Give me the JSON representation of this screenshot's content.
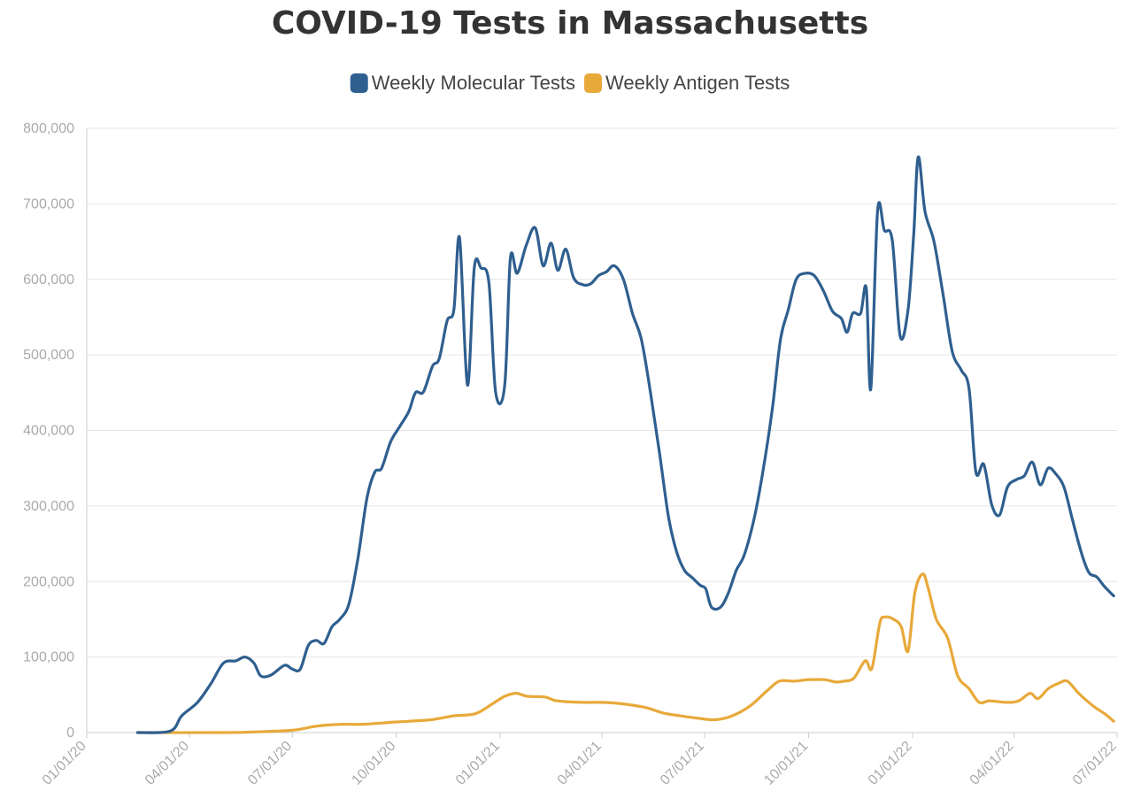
{
  "chart_data": {
    "type": "line",
    "title": "COVID-19 Tests in Massachusetts",
    "xlabel": "",
    "ylabel": "",
    "x_axis": {
      "type": "date",
      "range": [
        "2020-01-01",
        "2022-07-01"
      ],
      "ticks": [
        {
          "date": "2020-01-01",
          "label": "01/01/20"
        },
        {
          "date": "2020-04-01",
          "label": "04/01/20"
        },
        {
          "date": "2020-07-01",
          "label": "07/01/20"
        },
        {
          "date": "2020-10-01",
          "label": "10/01/20"
        },
        {
          "date": "2021-01-01",
          "label": "01/01/21"
        },
        {
          "date": "2021-04-01",
          "label": "04/01/21"
        },
        {
          "date": "2021-07-01",
          "label": "07/01/21"
        },
        {
          "date": "2021-10-01",
          "label": "10/01/21"
        },
        {
          "date": "2022-01-01",
          "label": "01/01/22"
        },
        {
          "date": "2022-04-01",
          "label": "04/01/22"
        },
        {
          "date": "2022-07-01",
          "label": "07/01/22"
        }
      ]
    },
    "y_axis": {
      "range": [
        0,
        800000
      ],
      "ticks": [
        {
          "value": 0,
          "label": "0"
        },
        {
          "value": 100000,
          "label": "100,000"
        },
        {
          "value": 200000,
          "label": "200,000"
        },
        {
          "value": 300000,
          "label": "300,000"
        },
        {
          "value": 400000,
          "label": "400,000"
        },
        {
          "value": 500000,
          "label": "500,000"
        },
        {
          "value": 600000,
          "label": "600,000"
        },
        {
          "value": 700000,
          "label": "700,000"
        },
        {
          "value": 800000,
          "label": "800,000"
        }
      ]
    },
    "grid": "horizontal",
    "legend": "top-center",
    "series": [
      {
        "name": "Weekly Molecular Tests",
        "color": "#2f5f8f",
        "points": [
          [
            "2020-02-15",
            0
          ],
          [
            "2020-03-15",
            2000
          ],
          [
            "2020-03-25",
            22000
          ],
          [
            "2020-04-08",
            40000
          ],
          [
            "2020-04-20",
            65000
          ],
          [
            "2020-05-01",
            92000
          ],
          [
            "2020-05-12",
            95000
          ],
          [
            "2020-05-20",
            100000
          ],
          [
            "2020-05-28",
            92000
          ],
          [
            "2020-06-03",
            75000
          ],
          [
            "2020-06-12",
            76000
          ],
          [
            "2020-06-24",
            89000
          ],
          [
            "2020-07-01",
            84000
          ],
          [
            "2020-07-08",
            84000
          ],
          [
            "2020-07-15",
            115000
          ],
          [
            "2020-07-22",
            122000
          ],
          [
            "2020-07-29",
            118000
          ],
          [
            "2020-08-05",
            140000
          ],
          [
            "2020-08-12",
            150000
          ],
          [
            "2020-08-20",
            170000
          ],
          [
            "2020-08-28",
            230000
          ],
          [
            "2020-09-05",
            310000
          ],
          [
            "2020-09-12",
            345000
          ],
          [
            "2020-09-18",
            350000
          ],
          [
            "2020-09-26",
            385000
          ],
          [
            "2020-10-04",
            405000
          ],
          [
            "2020-10-12",
            425000
          ],
          [
            "2020-10-18",
            450000
          ],
          [
            "2020-10-25",
            451000
          ],
          [
            "2020-11-02",
            485000
          ],
          [
            "2020-11-08",
            495000
          ],
          [
            "2020-11-15",
            545000
          ],
          [
            "2020-11-21",
            560000
          ],
          [
            "2020-11-26",
            655000
          ],
          [
            "2020-12-03",
            460000
          ],
          [
            "2020-12-09",
            615000
          ],
          [
            "2020-12-15",
            615000
          ],
          [
            "2020-12-22",
            595000
          ],
          [
            "2020-12-28",
            450000
          ],
          [
            "2021-01-05",
            460000
          ],
          [
            "2021-01-10",
            628000
          ],
          [
            "2021-01-16",
            608000
          ],
          [
            "2021-01-24",
            645000
          ],
          [
            "2021-02-01",
            668000
          ],
          [
            "2021-02-08",
            618000
          ],
          [
            "2021-02-15",
            648000
          ],
          [
            "2021-02-21",
            612000
          ],
          [
            "2021-02-28",
            640000
          ],
          [
            "2021-03-07",
            602000
          ],
          [
            "2021-03-15",
            593000
          ],
          [
            "2021-03-22",
            594000
          ],
          [
            "2021-03-29",
            605000
          ],
          [
            "2021-04-05",
            610000
          ],
          [
            "2021-04-12",
            618000
          ],
          [
            "2021-04-20",
            600000
          ],
          [
            "2021-04-28",
            555000
          ],
          [
            "2021-05-06",
            520000
          ],
          [
            "2021-05-14",
            450000
          ],
          [
            "2021-05-22",
            370000
          ],
          [
            "2021-05-30",
            285000
          ],
          [
            "2021-06-06",
            240000
          ],
          [
            "2021-06-13",
            215000
          ],
          [
            "2021-06-20",
            205000
          ],
          [
            "2021-06-27",
            195000
          ],
          [
            "2021-07-02",
            190000
          ],
          [
            "2021-07-07",
            166000
          ],
          [
            "2021-07-15",
            166000
          ],
          [
            "2021-07-22",
            185000
          ],
          [
            "2021-07-29",
            215000
          ],
          [
            "2021-08-05",
            235000
          ],
          [
            "2021-08-14",
            285000
          ],
          [
            "2021-08-22",
            350000
          ],
          [
            "2021-08-30",
            430000
          ],
          [
            "2021-09-06",
            520000
          ],
          [
            "2021-09-13",
            560000
          ],
          [
            "2021-09-20",
            600000
          ],
          [
            "2021-09-28",
            608000
          ],
          [
            "2021-10-06",
            605000
          ],
          [
            "2021-10-14",
            585000
          ],
          [
            "2021-10-22",
            558000
          ],
          [
            "2021-10-30",
            548000
          ],
          [
            "2021-11-04",
            530000
          ],
          [
            "2021-11-09",
            555000
          ],
          [
            "2021-11-16",
            555000
          ],
          [
            "2021-11-21",
            588000
          ],
          [
            "2021-11-25",
            455000
          ],
          [
            "2021-12-01",
            690000
          ],
          [
            "2021-12-07",
            665000
          ],
          [
            "2021-12-14",
            652000
          ],
          [
            "2021-12-21",
            525000
          ],
          [
            "2021-12-28",
            560000
          ],
          [
            "2022-01-02",
            660000
          ],
          [
            "2022-01-06",
            762000
          ],
          [
            "2022-01-12",
            690000
          ],
          [
            "2022-01-20",
            650000
          ],
          [
            "2022-01-28",
            580000
          ],
          [
            "2022-02-05",
            505000
          ],
          [
            "2022-02-13",
            480000
          ],
          [
            "2022-02-20",
            455000
          ],
          [
            "2022-02-26",
            345000
          ],
          [
            "2022-03-05",
            355000
          ],
          [
            "2022-03-12",
            302000
          ],
          [
            "2022-03-19",
            288000
          ],
          [
            "2022-03-26",
            325000
          ],
          [
            "2022-04-03",
            335000
          ],
          [
            "2022-04-10",
            340000
          ],
          [
            "2022-04-17",
            358000
          ],
          [
            "2022-04-24",
            328000
          ],
          [
            "2022-05-01",
            350000
          ],
          [
            "2022-05-08",
            342000
          ],
          [
            "2022-05-15",
            325000
          ],
          [
            "2022-05-22",
            285000
          ],
          [
            "2022-05-30",
            240000
          ],
          [
            "2022-06-06",
            212000
          ],
          [
            "2022-06-13",
            206000
          ],
          [
            "2022-06-20",
            193000
          ],
          [
            "2022-06-28",
            181000
          ]
        ]
      },
      {
        "name": "Weekly Antigen Tests",
        "color": "#e8a93a",
        "points": [
          [
            "2020-02-15",
            0
          ],
          [
            "2020-05-01",
            0
          ],
          [
            "2020-06-01",
            1000
          ],
          [
            "2020-07-01",
            3000
          ],
          [
            "2020-07-20",
            8000
          ],
          [
            "2020-08-01",
            10000
          ],
          [
            "2020-08-15",
            11000
          ],
          [
            "2020-09-01",
            11000
          ],
          [
            "2020-10-01",
            14000
          ],
          [
            "2020-11-01",
            17000
          ],
          [
            "2020-11-20",
            22000
          ],
          [
            "2020-12-10",
            25000
          ],
          [
            "2020-12-25",
            38000
          ],
          [
            "2021-01-05",
            48000
          ],
          [
            "2021-01-15",
            52000
          ],
          [
            "2021-01-25",
            48000
          ],
          [
            "2021-02-10",
            47000
          ],
          [
            "2021-02-20",
            42000
          ],
          [
            "2021-03-15",
            40000
          ],
          [
            "2021-04-01",
            40000
          ],
          [
            "2021-04-20",
            38000
          ],
          [
            "2021-05-10",
            33000
          ],
          [
            "2021-05-25",
            26000
          ],
          [
            "2021-06-10",
            22000
          ],
          [
            "2021-06-25",
            19000
          ],
          [
            "2021-07-10",
            17000
          ],
          [
            "2021-07-25",
            22000
          ],
          [
            "2021-08-10",
            35000
          ],
          [
            "2021-08-25",
            55000
          ],
          [
            "2021-09-05",
            68000
          ],
          [
            "2021-09-18",
            68000
          ],
          [
            "2021-10-01",
            70000
          ],
          [
            "2021-10-15",
            70000
          ],
          [
            "2021-10-25",
            67000
          ],
          [
            "2021-11-01",
            68000
          ],
          [
            "2021-11-10",
            72000
          ],
          [
            "2021-11-20",
            95000
          ],
          [
            "2021-11-26",
            85000
          ],
          [
            "2021-12-03",
            145000
          ],
          [
            "2021-12-08",
            153000
          ],
          [
            "2021-12-15",
            150000
          ],
          [
            "2021-12-22",
            140000
          ],
          [
            "2021-12-28",
            108000
          ],
          [
            "2022-01-03",
            185000
          ],
          [
            "2022-01-10",
            210000
          ],
          [
            "2022-01-15",
            190000
          ],
          [
            "2022-01-22",
            150000
          ],
          [
            "2022-02-01",
            125000
          ],
          [
            "2022-02-10",
            75000
          ],
          [
            "2022-02-20",
            58000
          ],
          [
            "2022-03-01",
            40000
          ],
          [
            "2022-03-10",
            42000
          ],
          [
            "2022-03-25",
            40000
          ],
          [
            "2022-04-05",
            42000
          ],
          [
            "2022-04-15",
            52000
          ],
          [
            "2022-04-22",
            45000
          ],
          [
            "2022-05-01",
            58000
          ],
          [
            "2022-05-10",
            65000
          ],
          [
            "2022-05-18",
            68000
          ],
          [
            "2022-05-28",
            52000
          ],
          [
            "2022-06-10",
            35000
          ],
          [
            "2022-06-20",
            25000
          ],
          [
            "2022-06-28",
            15000
          ]
        ]
      }
    ]
  }
}
